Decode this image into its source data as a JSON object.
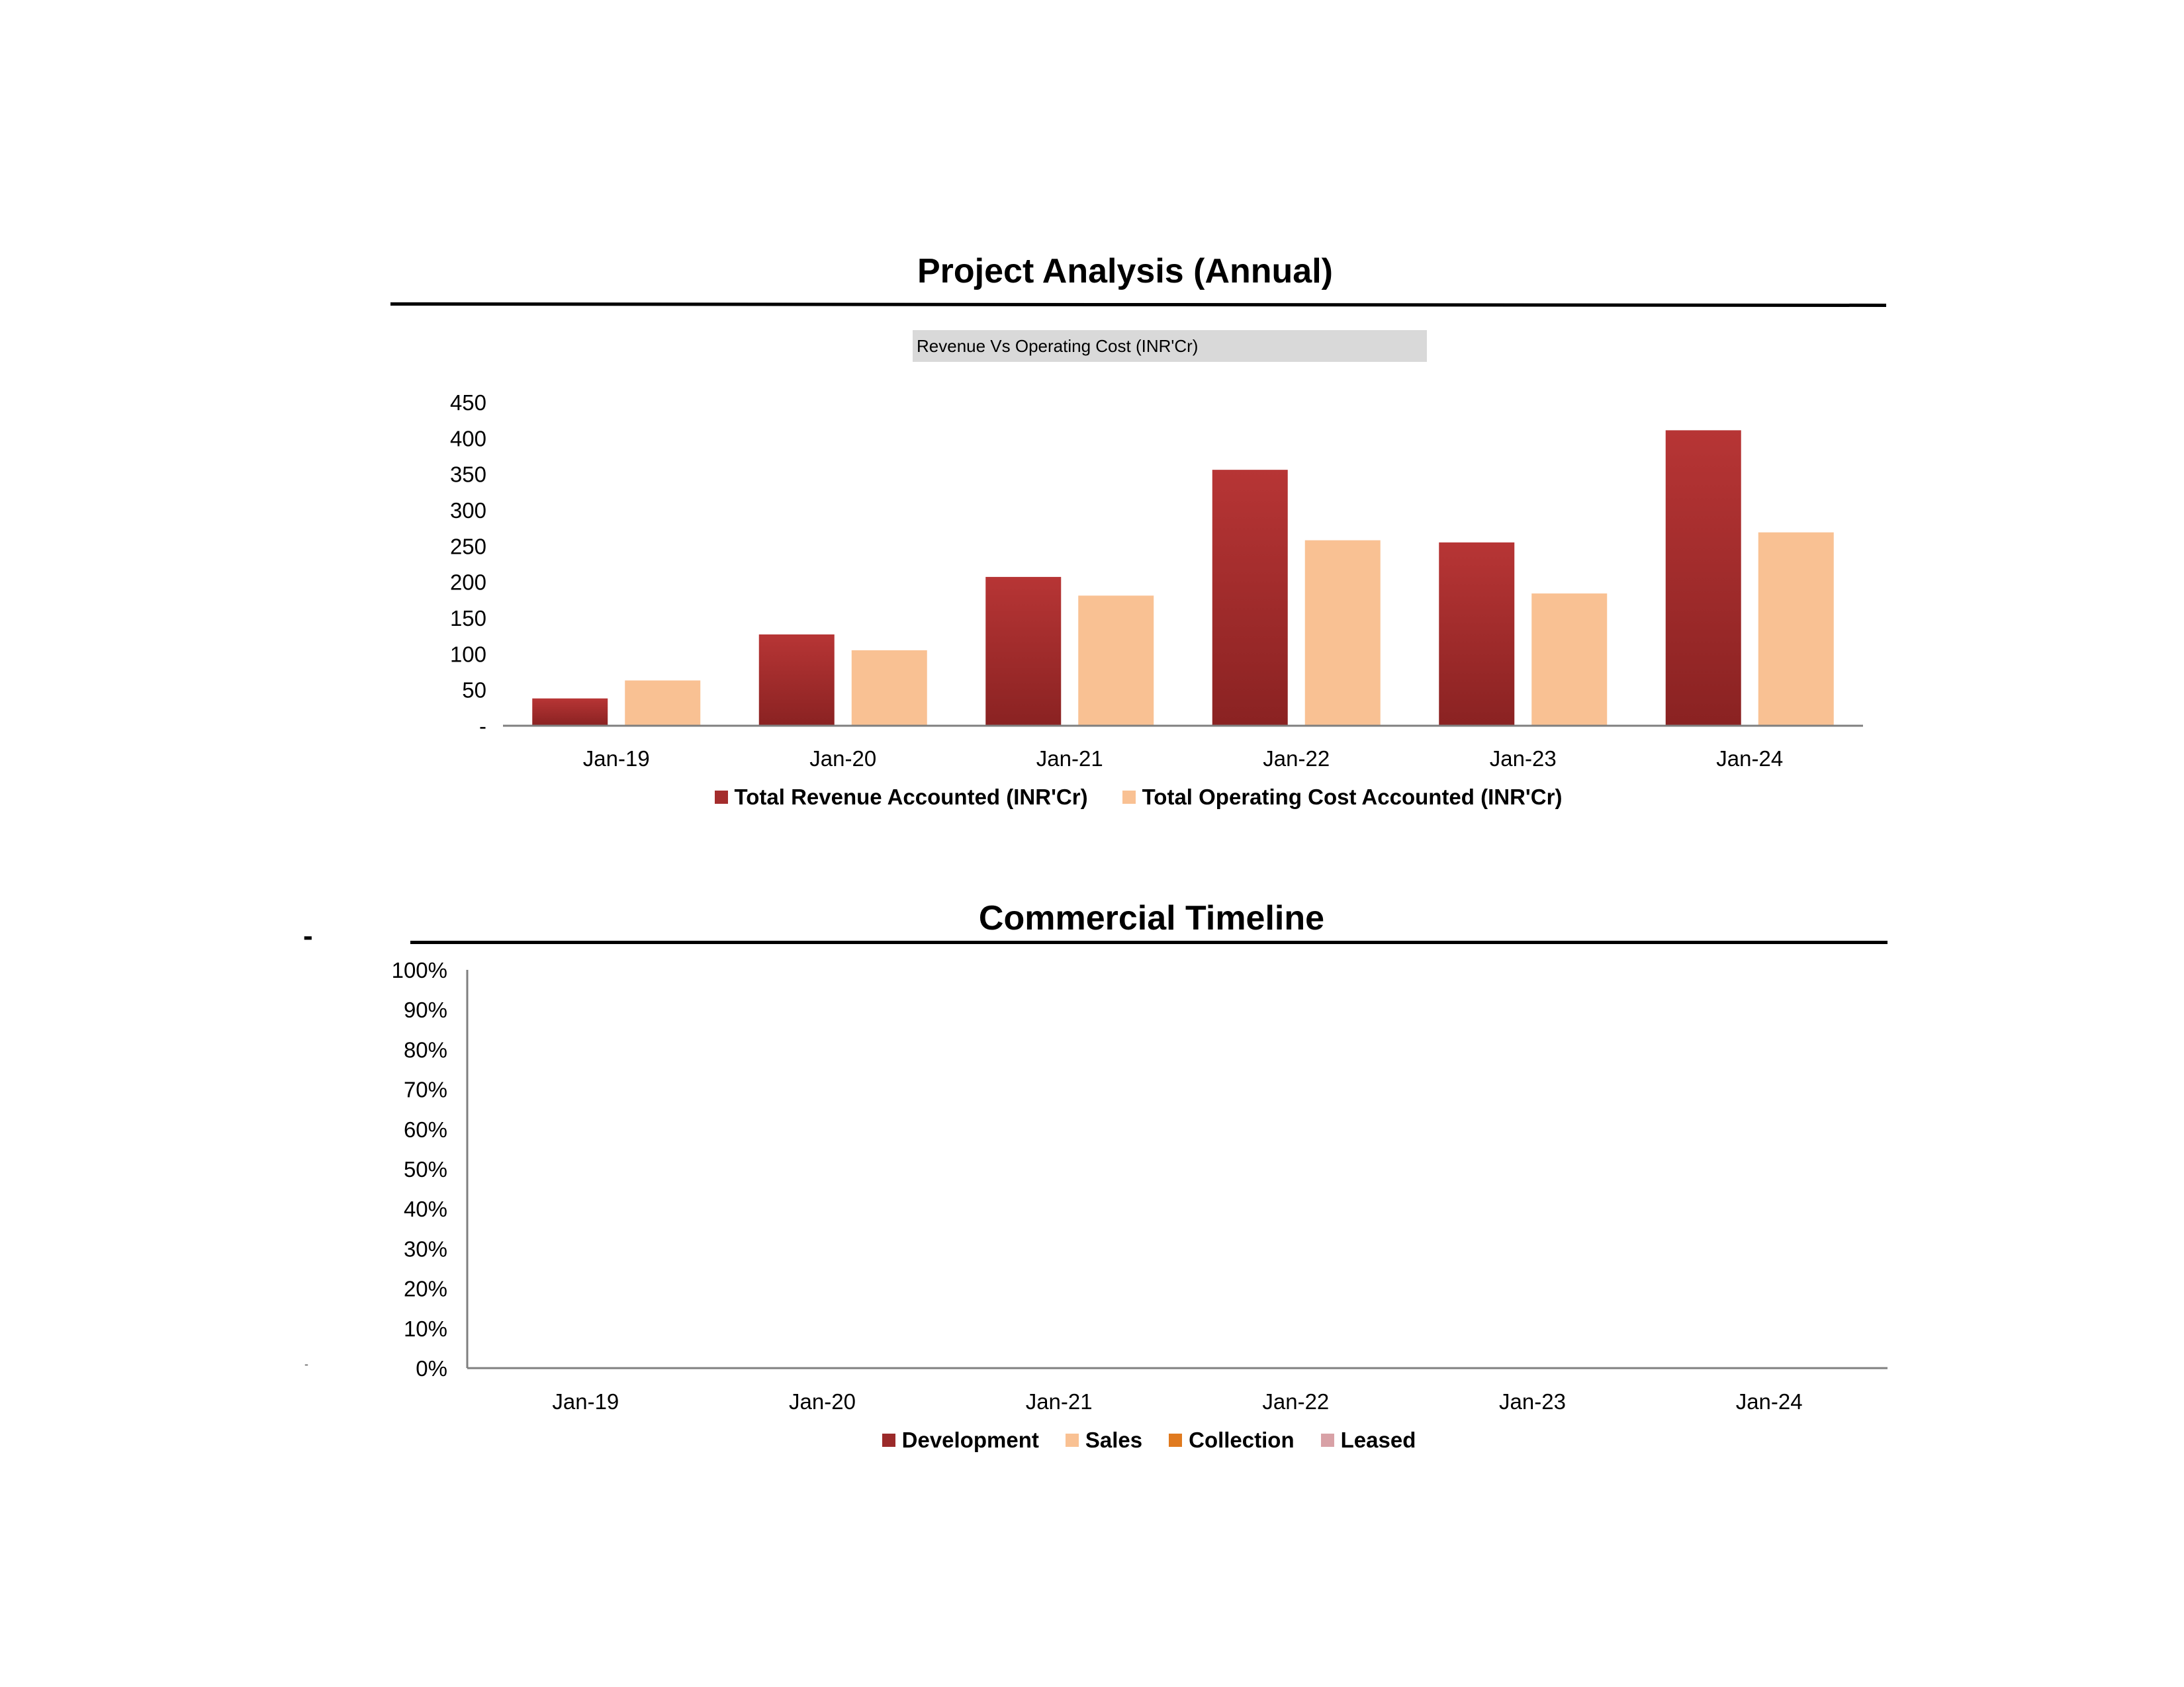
{
  "page": {
    "dash_left_1": "-",
    "dash_left_2": "-"
  },
  "colors": {
    "revenue_top": "#b73535",
    "revenue_bottom": "#8a2222",
    "cost": "#f9c193",
    "development": "#9b2a2a",
    "sales": "#f9c193",
    "collection": "#e07a1f",
    "leased": "#d8a1a6"
  },
  "project_analysis": {
    "title": "Project Analysis (Annual)",
    "subtitle": "Revenue Vs Operating Cost (INR'Cr)",
    "legend": [
      "Total Revenue Accounted (INR'Cr)",
      "Total Operating Cost Accounted (INR'Cr)"
    ]
  },
  "commercial_timeline": {
    "title": "Commercial Timeline",
    "legend": [
      "Development",
      "Sales",
      "Collection",
      "Leased"
    ]
  },
  "chart_data": [
    {
      "type": "bar",
      "title": "Project Analysis (Annual)",
      "subtitle": "Revenue Vs Operating Cost (INR'Cr)",
      "categories": [
        "Jan-19",
        "Jan-20",
        "Jan-21",
        "Jan-22",
        "Jan-23",
        "Jan-24"
      ],
      "series": [
        {
          "name": "Total Revenue Accounted (INR'Cr)",
          "values": [
            38,
            127,
            207,
            356,
            255,
            411
          ]
        },
        {
          "name": "Total Operating Cost Accounted (INR'Cr)",
          "values": [
            63,
            105,
            181,
            258,
            184,
            269
          ]
        }
      ],
      "yticks": [
        "-",
        "50",
        "100",
        "150",
        "200",
        "250",
        "300",
        "350",
        "400",
        "450"
      ],
      "ylim": [
        0,
        450
      ],
      "grid": false,
      "legend_position": "bottom"
    },
    {
      "type": "bar",
      "title": "Commercial Timeline",
      "categories": [
        "Jan-19",
        "Jan-20",
        "Jan-21",
        "Jan-22",
        "Jan-23",
        "Jan-24"
      ],
      "series": [
        {
          "name": "Development",
          "values": [
            0,
            0,
            0,
            0,
            0,
            0
          ]
        },
        {
          "name": "Sales",
          "values": [
            0,
            0,
            0,
            0,
            0,
            0
          ]
        },
        {
          "name": "Collection",
          "values": [
            0,
            0,
            0,
            0,
            0,
            0
          ]
        },
        {
          "name": "Leased",
          "values": [
            0,
            0,
            0,
            0,
            0,
            0
          ]
        }
      ],
      "yticks": [
        "0%",
        "10%",
        "20%",
        "30%",
        "40%",
        "50%",
        "60%",
        "70%",
        "80%",
        "90%",
        "100%"
      ],
      "ylim": [
        0,
        1
      ],
      "grid": false,
      "legend_position": "bottom"
    }
  ]
}
